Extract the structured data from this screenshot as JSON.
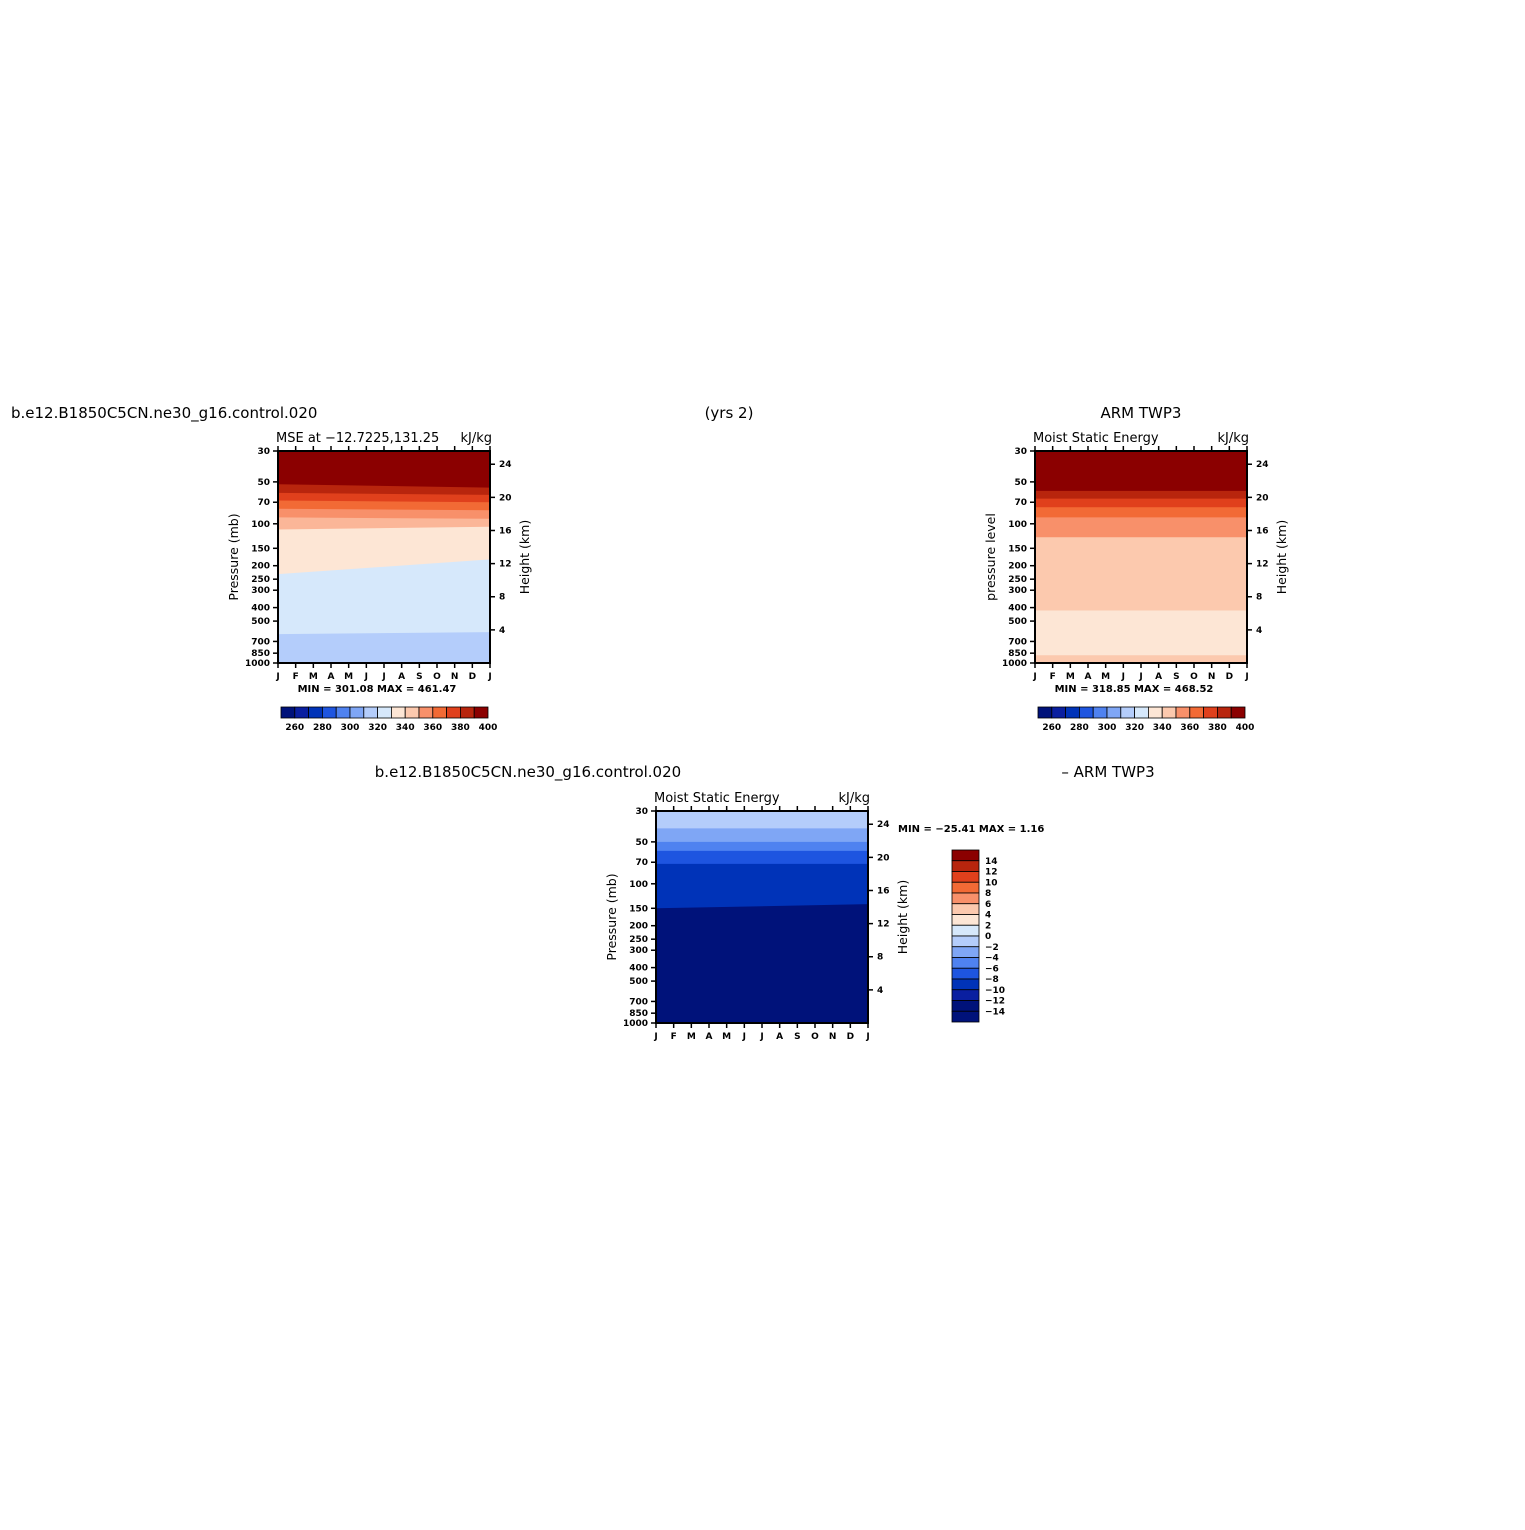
{
  "headings": {
    "top_left": "b.e12.B1850C5CN.ne30_g16.control.020",
    "top_center": "(yrs 2)",
    "top_right": "ARM TWP3",
    "bottom_left": "b.e12.B1850C5CN.ne30_g16.control.020",
    "bottom_right": "– ARM TWP3"
  },
  "chart_data": [
    {
      "type": "heatmap",
      "title_left": "MSE at −12.7225,131.25",
      "title_right": "kJ/kg",
      "ylabel": "Pressure (mb)",
      "ylabel_right": "Height (km)",
      "x_ticks": [
        "J",
        "F",
        "M",
        "A",
        "M",
        "J",
        "J",
        "A",
        "S",
        "O",
        "N",
        "D",
        "J"
      ],
      "y_ticks": [
        "30",
        "50",
        "70",
        "100",
        "150",
        "200",
        "250",
        "300",
        "400",
        "500",
        "700",
        "850",
        "1000"
      ],
      "y_ticks_right": [
        "24",
        "20",
        "16",
        "12",
        "8",
        "4"
      ],
      "stats": "MIN = 301.08 MAX = 461.47",
      "colorbar_labels": [
        "260",
        "280",
        "300",
        "320",
        "340",
        "360",
        "380",
        "400"
      ],
      "levels": [
        {
          "top_left": 30,
          "top_right": 30,
          "color": "#8b0000"
        },
        {
          "top_left": 52,
          "top_right": 55,
          "color": "#b8250d"
        },
        {
          "top_left": 60,
          "top_right": 62,
          "color": "#e0401c"
        },
        {
          "top_left": 68,
          "top_right": 70,
          "color": "#f26a35"
        },
        {
          "top_left": 78,
          "top_right": 80,
          "color": "#f8906a"
        },
        {
          "top_left": 90,
          "top_right": 92,
          "color": "#fbb698"
        },
        {
          "top_left": 110,
          "top_right": 105,
          "color": "#fde6d5"
        },
        {
          "top_left": 230,
          "top_right": 180,
          "color": "#d6e8fb"
        },
        {
          "top_left": 620,
          "top_right": 600,
          "color": "#b4cdfb"
        },
        {
          "top_left": 1000,
          "top_right": 1000,
          "color": "#fde6d5"
        }
      ]
    },
    {
      "type": "heatmap",
      "title_left": "Moist Static Energy",
      "title_right": "kJ/kg",
      "ylabel": "pressure level",
      "ylabel_right": "Height (km)",
      "x_ticks": [
        "J",
        "F",
        "M",
        "A",
        "M",
        "J",
        "J",
        "A",
        "S",
        "O",
        "N",
        "D",
        "J"
      ],
      "y_ticks": [
        "30",
        "50",
        "70",
        "100",
        "150",
        "200",
        "250",
        "300",
        "400",
        "500",
        "700",
        "850",
        "1000"
      ],
      "y_ticks_right": [
        "24",
        "20",
        "16",
        "12",
        "8",
        "4"
      ],
      "stats": "MIN = 318.85 MAX = 468.52",
      "colorbar_labels": [
        "260",
        "280",
        "300",
        "320",
        "340",
        "360",
        "380",
        "400"
      ],
      "levels": [
        {
          "top_left": 30,
          "top_right": 30,
          "color": "#8b0000"
        },
        {
          "top_left": 58,
          "top_right": 58,
          "color": "#b8250d"
        },
        {
          "top_left": 66,
          "top_right": 66,
          "color": "#e0401c"
        },
        {
          "top_left": 76,
          "top_right": 76,
          "color": "#f26a35"
        },
        {
          "top_left": 90,
          "top_right": 90,
          "color": "#f8906a"
        },
        {
          "top_left": 125,
          "top_right": 125,
          "color": "#fcc9ae"
        },
        {
          "top_left": 420,
          "top_right": 420,
          "color": "#fde6d5"
        },
        {
          "top_left": 880,
          "top_right": 880,
          "color": "#fcc9ae"
        }
      ]
    },
    {
      "type": "heatmap",
      "title_left": "Moist Static Energy",
      "title_right": "kJ/kg",
      "ylabel": "Pressure (mb)",
      "ylabel_right": "Height (km)",
      "x_ticks": [
        "J",
        "F",
        "M",
        "A",
        "M",
        "J",
        "J",
        "A",
        "S",
        "O",
        "N",
        "D",
        "J"
      ],
      "y_ticks": [
        "30",
        "50",
        "70",
        "100",
        "150",
        "200",
        "250",
        "300",
        "400",
        "500",
        "700",
        "850",
        "1000"
      ],
      "y_ticks_right": [
        "24",
        "20",
        "16",
        "12",
        "8",
        "4"
      ],
      "stats": "MIN = −25.41 MAX =    1.16",
      "colorbar_labels": [
        "14",
        "12",
        "10",
        "8",
        "6",
        "4",
        "2",
        "0",
        "−2",
        "−4",
        "−6",
        "−8",
        "−10",
        "−12",
        "−14"
      ],
      "levels": [
        {
          "top_left": 30,
          "top_right": 30,
          "color": "#b4cdfb"
        },
        {
          "top_left": 40,
          "top_right": 40,
          "color": "#7fa6f5"
        },
        {
          "top_left": 50,
          "top_right": 50,
          "color": "#4f82f0"
        },
        {
          "top_left": 58,
          "top_right": 58,
          "color": "#1e55e0"
        },
        {
          "top_left": 72,
          "top_right": 72,
          "color": "#0033b8"
        },
        {
          "top_left": 150,
          "top_right": 140,
          "color": "#00127a"
        }
      ]
    }
  ],
  "colors": {
    "scale_diverging": [
      "#00127a",
      "#0a1fa0",
      "#0033b8",
      "#1e55e0",
      "#4f82f0",
      "#7fa6f5",
      "#b4cdfb",
      "#d6e8fb",
      "#fde6d5",
      "#fcc9ae",
      "#f8906a",
      "#f26a35",
      "#e0401c",
      "#b8250d",
      "#8b0000"
    ]
  }
}
